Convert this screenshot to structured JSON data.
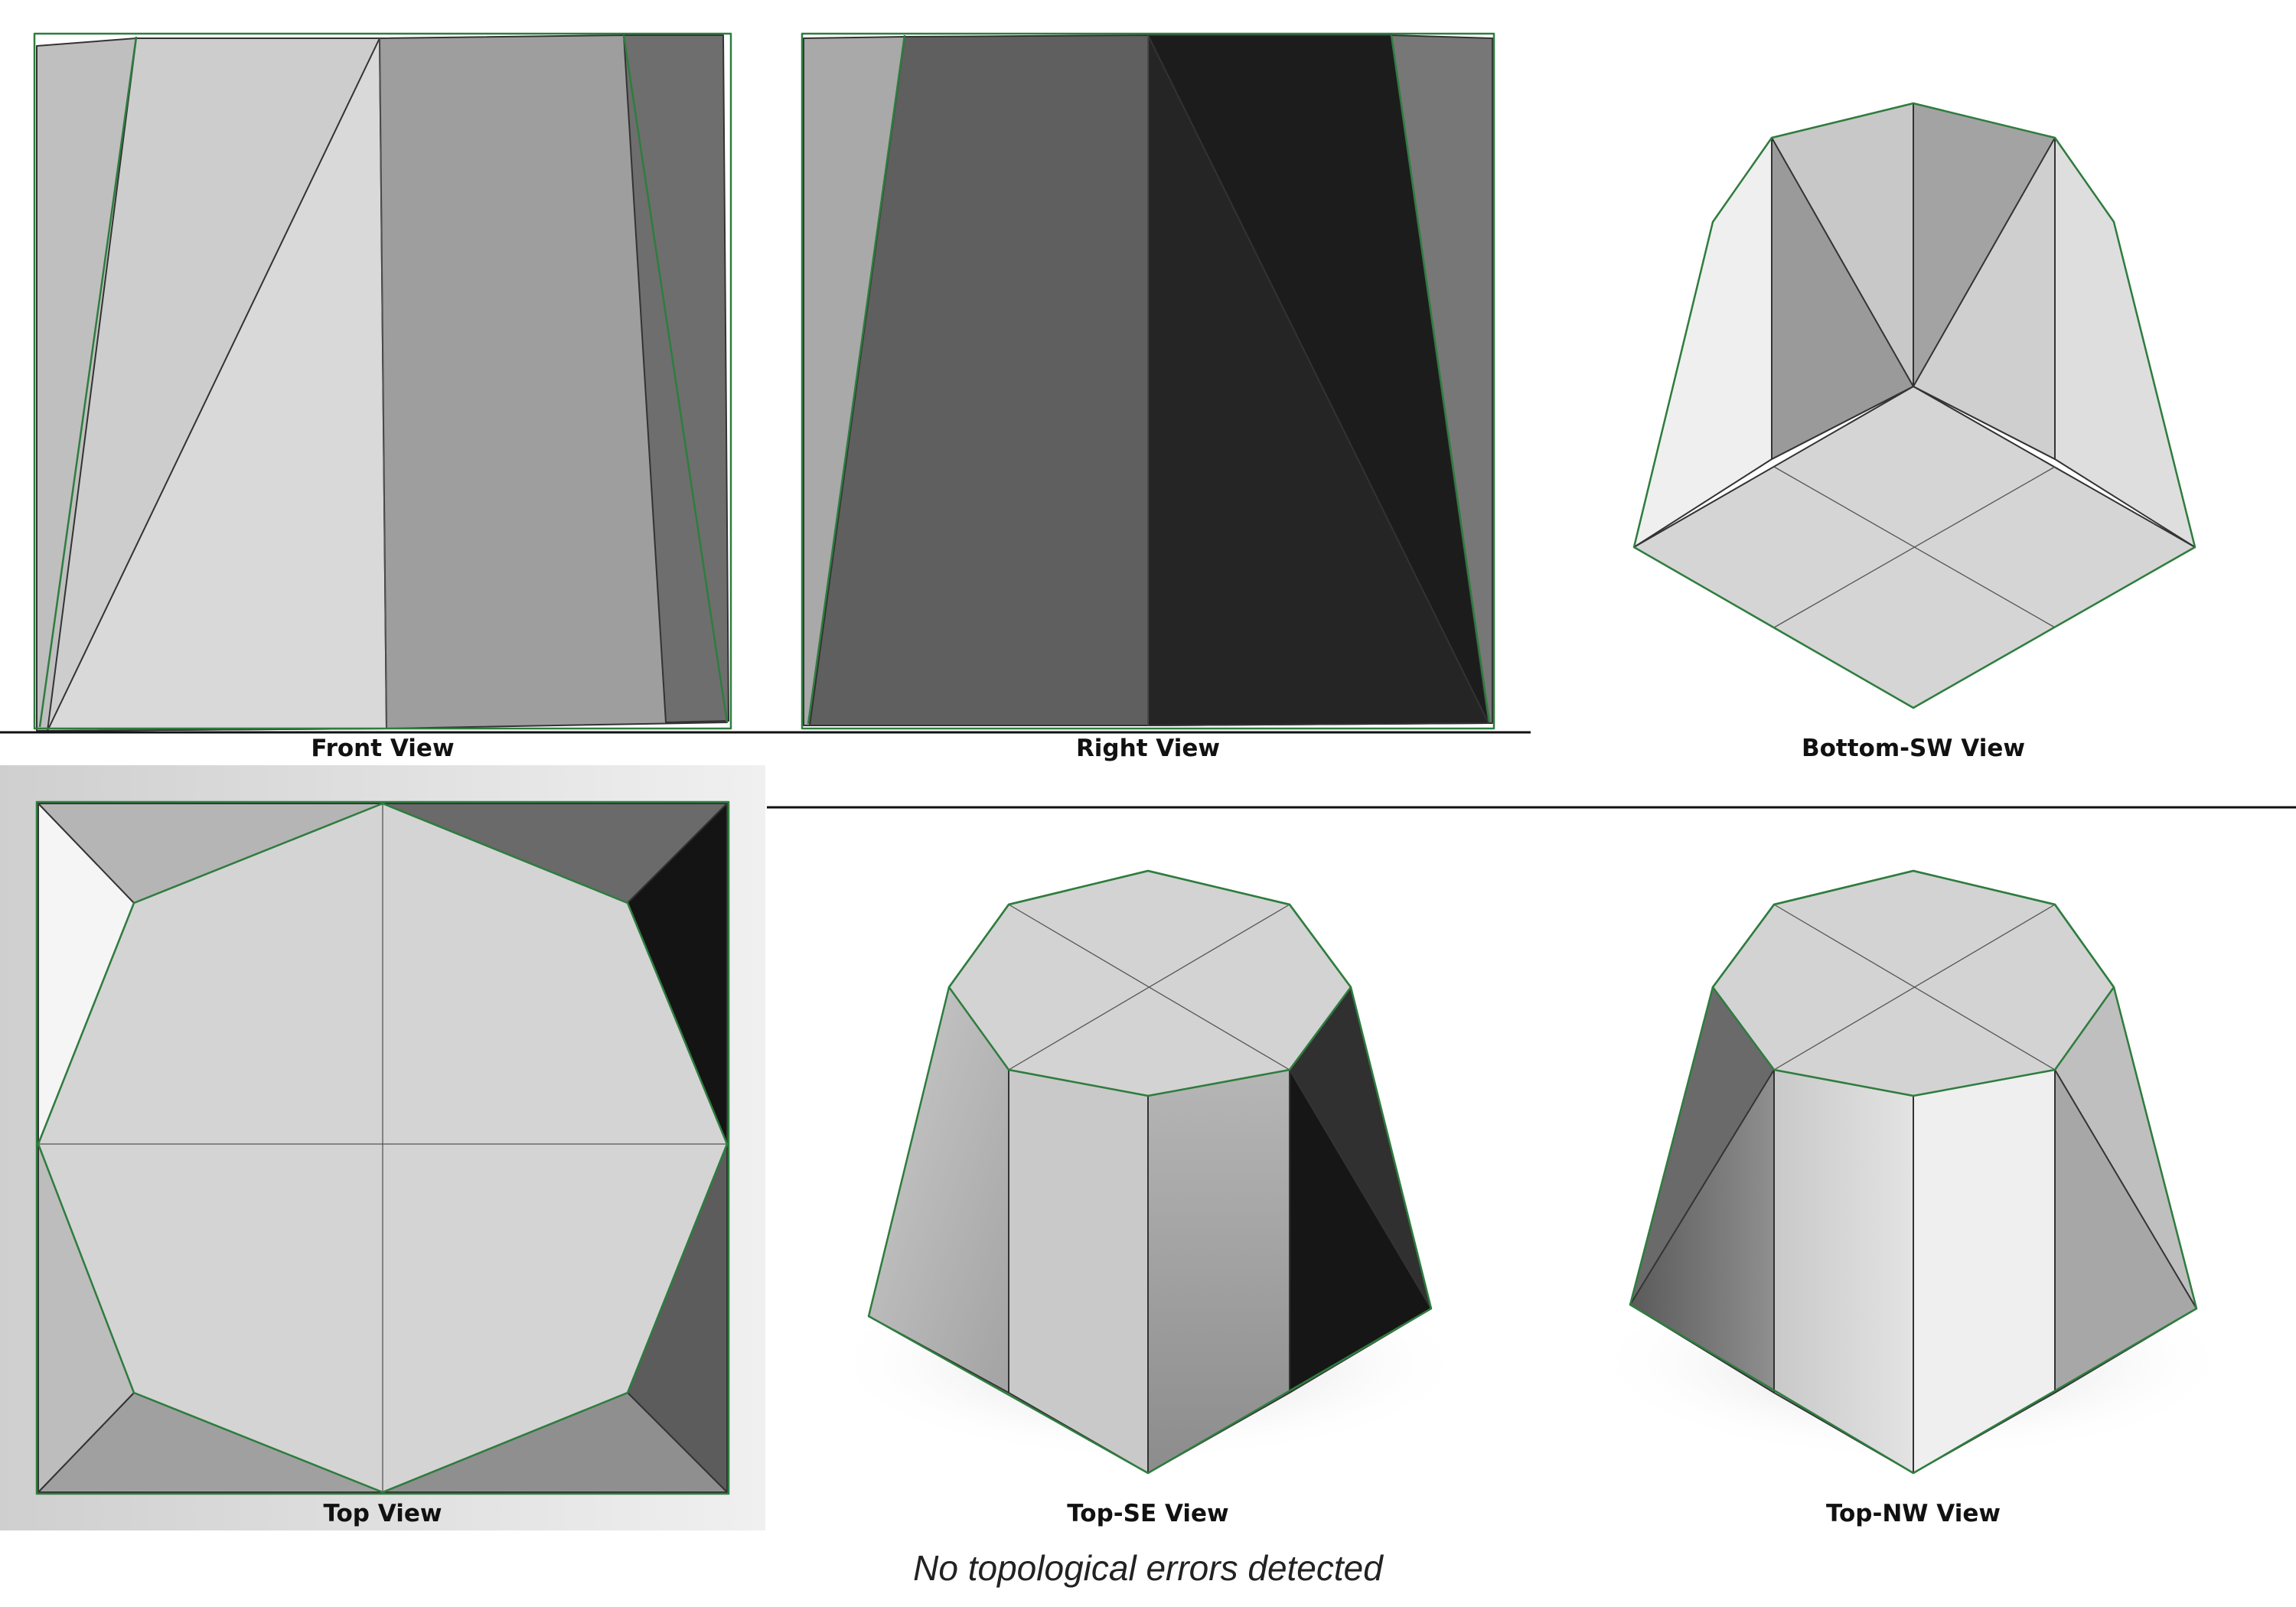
{
  "views": {
    "front": {
      "label": "Front View"
    },
    "right": {
      "label": "Right View"
    },
    "bottom_sw": {
      "label": "Bottom-SW View"
    },
    "top": {
      "label": "Top View"
    },
    "top_se": {
      "label": "Top-SE View"
    },
    "top_nw": {
      "label": "Top-NW View"
    }
  },
  "status": {
    "message": "No topological errors detected"
  },
  "colors": {
    "highlight_edge": "#2e7d3e",
    "background": "#ffffff",
    "face_light": "#d6d6d6",
    "face_dark": "#161616"
  }
}
